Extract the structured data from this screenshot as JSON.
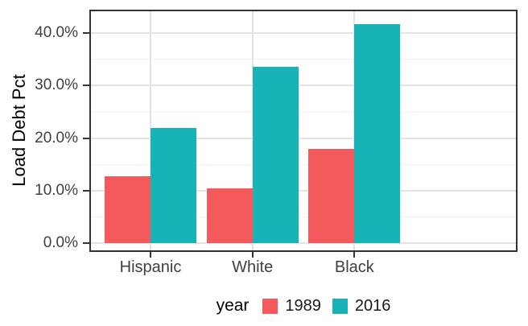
{
  "chart_data": {
    "type": "bar",
    "title": "",
    "xlabel": "",
    "ylabel": "Load Debt Pct",
    "categories": [
      "Hispanic",
      "White",
      "Black"
    ],
    "series": [
      {
        "name": "1989",
        "color": "#F4595B",
        "values": [
          12.7,
          10.4,
          17.9
        ]
      },
      {
        "name": "2016",
        "color": "#17B3B7",
        "values": [
          21.9,
          33.6,
          41.8
        ]
      }
    ],
    "value_unit": "percent",
    "ylim": [
      0,
      44.5
    ],
    "yticks": {
      "major_values": [
        0,
        10,
        20,
        30,
        40
      ],
      "minor_values": [
        5,
        15,
        25,
        35
      ],
      "labels": [
        "0.0%",
        "10.0%",
        "20.0%",
        "30.0%",
        "40.0%"
      ]
    },
    "grid": true,
    "legend": {
      "title": "year",
      "position": "bottom"
    },
    "colors": {
      "bar_1989": "#F4595B",
      "bar_2016": "#17B3B7",
      "grid_major": "#E3E3E3",
      "grid_minor": "#F0F0F0",
      "panel_border": "#333333",
      "tick_mark": "#333333",
      "axis_text": "#404040",
      "axis_title": "#000000",
      "background": "#FFFFFF"
    }
  }
}
